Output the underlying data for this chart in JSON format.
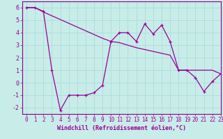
{
  "title": "",
  "xlabel": "Windchill (Refroidissement éolien,°C)",
  "ylabel": "",
  "background_color": "#c8ece8",
  "line_color": "#990099",
  "series1_x": [
    0,
    1,
    2,
    3,
    4,
    5,
    6,
    7,
    8,
    9,
    10,
    11,
    12,
    13,
    14,
    15,
    16,
    17,
    18,
    19,
    20,
    21,
    22,
    23
  ],
  "series1_y": [
    6,
    6,
    5.7,
    1.0,
    -2.2,
    -1.0,
    -1.0,
    -1.0,
    -0.8,
    -0.2,
    3.3,
    4.0,
    4.0,
    3.3,
    4.7,
    3.9,
    4.6,
    3.3,
    1.0,
    1.0,
    0.4,
    -0.7,
    0.1,
    0.7
  ],
  "series2_x": [
    0,
    1,
    2,
    3,
    4,
    5,
    6,
    7,
    8,
    9,
    10,
    11,
    12,
    13,
    14,
    15,
    16,
    17,
    18,
    19,
    20,
    21,
    22,
    23
  ],
  "series2_y": [
    6.0,
    6.0,
    5.65,
    5.35,
    5.05,
    4.75,
    4.45,
    4.15,
    3.85,
    3.55,
    3.3,
    3.2,
    3.0,
    2.8,
    2.65,
    2.5,
    2.35,
    2.2,
    1.0,
    1.0,
    1.0,
    1.0,
    1.0,
    0.7
  ],
  "xlim": [
    -0.5,
    23
  ],
  "ylim": [
    -2.5,
    6.5
  ],
  "yticks": [
    -2,
    -1,
    0,
    1,
    2,
    3,
    4,
    5,
    6
  ],
  "xticks": [
    0,
    1,
    2,
    3,
    4,
    5,
    6,
    7,
    8,
    9,
    10,
    11,
    12,
    13,
    14,
    15,
    16,
    17,
    18,
    19,
    20,
    21,
    22,
    23
  ],
  "grid_color": "#aadddd",
  "spine_color": "#880088",
  "xlabel_fontsize": 6.0,
  "tick_fontsize": 5.5,
  "marker_size": 3.5
}
